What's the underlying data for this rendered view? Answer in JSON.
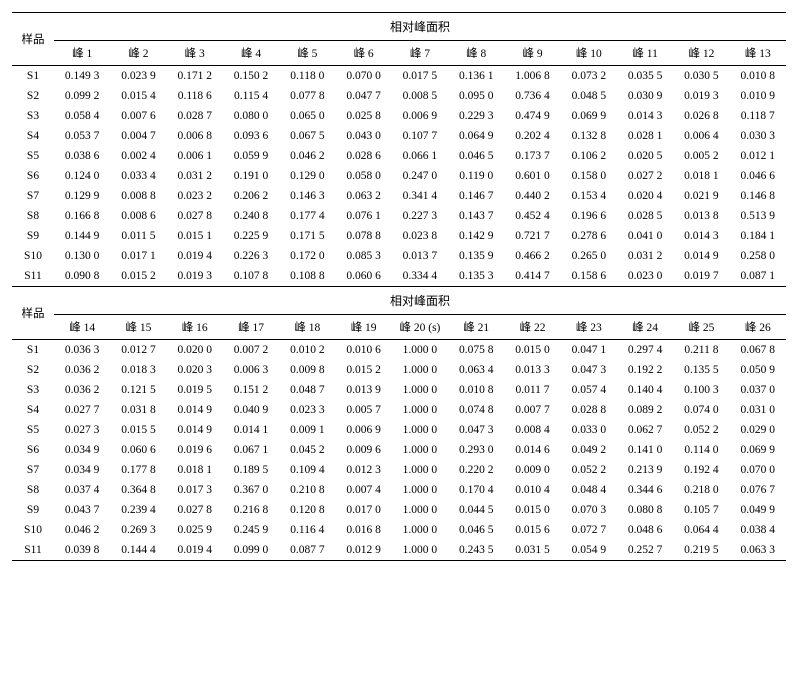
{
  "labels": {
    "sample": "样品",
    "groupHeader": "相对峰面积",
    "peakPrefix": "峰 ",
    "peak20": "峰 20 (s)"
  },
  "block1": {
    "peaks": [
      "1",
      "2",
      "3",
      "4",
      "5",
      "6",
      "7",
      "8",
      "9",
      "10",
      "11",
      "12",
      "13"
    ],
    "rows": [
      {
        "s": "S1",
        "v": [
          "0.149 3",
          "0.023 9",
          "0.171 2",
          "0.150 2",
          "0.118 0",
          "0.070 0",
          "0.017 5",
          "0.136 1",
          "1.006 8",
          "0.073 2",
          "0.035 5",
          "0.030 5",
          "0.010 8"
        ]
      },
      {
        "s": "S2",
        "v": [
          "0.099 2",
          "0.015 4",
          "0.118 6",
          "0.115 4",
          "0.077 8",
          "0.047 7",
          "0.008 5",
          "0.095 0",
          "0.736 4",
          "0.048 5",
          "0.030 9",
          "0.019 3",
          "0.010 9"
        ]
      },
      {
        "s": "S3",
        "v": [
          "0.058 4",
          "0.007 6",
          "0.028 7",
          "0.080 0",
          "0.065 0",
          "0.025 8",
          "0.006 9",
          "0.229 3",
          "0.474 9",
          "0.069 9",
          "0.014 3",
          "0.026 8",
          "0.118 7"
        ]
      },
      {
        "s": "S4",
        "v": [
          "0.053 7",
          "0.004 7",
          "0.006 8",
          "0.093 6",
          "0.067 5",
          "0.043 0",
          "0.107 7",
          "0.064 9",
          "0.202 4",
          "0.132 8",
          "0.028 1",
          "0.006 4",
          "0.030 3"
        ]
      },
      {
        "s": "S5",
        "v": [
          "0.038 6",
          "0.002 4",
          "0.006 1",
          "0.059 9",
          "0.046 2",
          "0.028 6",
          "0.066 1",
          "0.046 5",
          "0.173 7",
          "0.106 2",
          "0.020 5",
          "0.005 2",
          "0.012 1"
        ]
      },
      {
        "s": "S6",
        "v": [
          "0.124 0",
          "0.033 4",
          "0.031 2",
          "0.191 0",
          "0.129 0",
          "0.058 0",
          "0.247 0",
          "0.119 0",
          "0.601 0",
          "0.158 0",
          "0.027 2",
          "0.018 1",
          "0.046 6"
        ]
      },
      {
        "s": "S7",
        "v": [
          "0.129 9",
          "0.008 8",
          "0.023 2",
          "0.206 2",
          "0.146 3",
          "0.063 2",
          "0.341 4",
          "0.146 7",
          "0.440 2",
          "0.153 4",
          "0.020 4",
          "0.021 9",
          "0.146 8"
        ]
      },
      {
        "s": "S8",
        "v": [
          "0.166 8",
          "0.008 6",
          "0.027 8",
          "0.240 8",
          "0.177 4",
          "0.076 1",
          "0.227 3",
          "0.143 7",
          "0.452 4",
          "0.196 6",
          "0.028 5",
          "0.013 8",
          "0.513 9"
        ]
      },
      {
        "s": "S9",
        "v": [
          "0.144 9",
          "0.011 5",
          "0.015 1",
          "0.225 9",
          "0.171 5",
          "0.078 8",
          "0.023 8",
          "0.142 9",
          "0.721 7",
          "0.278 6",
          "0.041 0",
          "0.014 3",
          "0.184 1"
        ]
      },
      {
        "s": "S10",
        "v": [
          "0.130 0",
          "0.017 1",
          "0.019 4",
          "0.226 3",
          "0.172 0",
          "0.085 3",
          "0.013 7",
          "0.135 9",
          "0.466 2",
          "0.265 0",
          "0.031 2",
          "0.014 9",
          "0.258 0"
        ]
      },
      {
        "s": "S11",
        "v": [
          "0.090 8",
          "0.015 2",
          "0.019 3",
          "0.107 8",
          "0.108 8",
          "0.060 6",
          "0.334 4",
          "0.135 3",
          "0.414 7",
          "0.158 6",
          "0.023 0",
          "0.019 7",
          "0.087 1"
        ]
      }
    ]
  },
  "block2": {
    "peaks": [
      "14",
      "15",
      "16",
      "17",
      "18",
      "19",
      "20",
      "21",
      "22",
      "23",
      "24",
      "25",
      "26"
    ],
    "rows": [
      {
        "s": "S1",
        "v": [
          "0.036 3",
          "0.012 7",
          "0.020 0",
          "0.007 2",
          "0.010 2",
          "0.010 6",
          "1.000 0",
          "0.075 8",
          "0.015 0",
          "0.047 1",
          "0.297 4",
          "0.211 8",
          "0.067 8"
        ]
      },
      {
        "s": "S2",
        "v": [
          "0.036 2",
          "0.018 3",
          "0.020 3",
          "0.006 3",
          "0.009 8",
          "0.015 2",
          "1.000 0",
          "0.063 4",
          "0.013 3",
          "0.047 3",
          "0.192 2",
          "0.135 5",
          "0.050 9"
        ]
      },
      {
        "s": "S3",
        "v": [
          "0.036 2",
          "0.121 5",
          "0.019 5",
          "0.151 2",
          "0.048 7",
          "0.013 9",
          "1.000 0",
          "0.010 8",
          "0.011 7",
          "0.057 4",
          "0.140 4",
          "0.100 3",
          "0.037 0"
        ]
      },
      {
        "s": "S4",
        "v": [
          "0.027 7",
          "0.031 8",
          "0.014 9",
          "0.040 9",
          "0.023 3",
          "0.005 7",
          "1.000 0",
          "0.074 8",
          "0.007 7",
          "0.028 8",
          "0.089 2",
          "0.074 0",
          "0.031 0"
        ]
      },
      {
        "s": "S5",
        "v": [
          "0.027 3",
          "0.015 5",
          "0.014 9",
          "0.014 1",
          "0.009 1",
          "0.006 9",
          "1.000 0",
          "0.047 3",
          "0.008 4",
          "0.033 0",
          "0.062 7",
          "0.052 2",
          "0.029 0"
        ]
      },
      {
        "s": "S6",
        "v": [
          "0.034 9",
          "0.060 6",
          "0.019 6",
          "0.067 1",
          "0.045 2",
          "0.009 6",
          "1.000 0",
          "0.293 0",
          "0.014 6",
          "0.049 2",
          "0.141 0",
          "0.114 0",
          "0.069 9"
        ]
      },
      {
        "s": "S7",
        "v": [
          "0.034 9",
          "0.177 8",
          "0.018 1",
          "0.189 5",
          "0.109 4",
          "0.012 3",
          "1.000 0",
          "0.220 2",
          "0.009 0",
          "0.052 2",
          "0.213 9",
          "0.192 4",
          "0.070 0"
        ]
      },
      {
        "s": "S8",
        "v": [
          "0.037 4",
          "0.364 8",
          "0.017 3",
          "0.367 0",
          "0.210 8",
          "0.007 4",
          "1.000 0",
          "0.170 4",
          "0.010 4",
          "0.048 4",
          "0.344 6",
          "0.218 0",
          "0.076 7"
        ]
      },
      {
        "s": "S9",
        "v": [
          "0.043 7",
          "0.239 4",
          "0.027 8",
          "0.216 8",
          "0.120 8",
          "0.017 0",
          "1.000 0",
          "0.044 5",
          "0.015 0",
          "0.070 3",
          "0.080 8",
          "0.105 7",
          "0.049 9"
        ]
      },
      {
        "s": "S10",
        "v": [
          "0.046 2",
          "0.269 3",
          "0.025 9",
          "0.245 9",
          "0.116 4",
          "0.016 8",
          "1.000 0",
          "0.046 5",
          "0.015 6",
          "0.072 7",
          "0.048 6",
          "0.064 4",
          "0.038 4"
        ]
      },
      {
        "s": "S11",
        "v": [
          "0.039 8",
          "0.144 4",
          "0.019 4",
          "0.099 0",
          "0.087 7",
          "0.012 9",
          "1.000 0",
          "0.243 5",
          "0.031 5",
          "0.054 9",
          "0.252 7",
          "0.219 5",
          "0.063 3"
        ]
      }
    ]
  }
}
